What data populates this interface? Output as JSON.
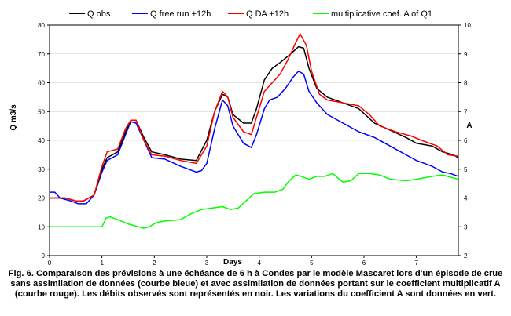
{
  "chart_data": {
    "type": "line",
    "xlabel": "Days",
    "ylabel": "Q m3/s",
    "y2label": "A",
    "xlim": [
      0,
      7.8
    ],
    "ylim": [
      0,
      80
    ],
    "y2lim": [
      2,
      10
    ],
    "x_ticks": [
      "0",
      "1",
      "2",
      "3",
      "4",
      "5",
      "6",
      "7"
    ],
    "y_ticks": [
      "0",
      "10",
      "20",
      "30",
      "40",
      "50",
      "60",
      "70",
      "80"
    ],
    "y2_ticks": [
      "2",
      "3",
      "4",
      "5",
      "6",
      "7",
      "8",
      "9",
      "10"
    ],
    "legend_position": "top",
    "series": [
      {
        "name": "Q obs.",
        "color": "#000000",
        "axis": "left",
        "points": [
          [
            0,
            20
          ],
          [
            0.3,
            20
          ],
          [
            0.5,
            19
          ],
          [
            0.65,
            19
          ],
          [
            0.85,
            21
          ],
          [
            1.0,
            30
          ],
          [
            1.1,
            34
          ],
          [
            1.3,
            36
          ],
          [
            1.45,
            43
          ],
          [
            1.55,
            47
          ],
          [
            1.65,
            47
          ],
          [
            1.8,
            41
          ],
          [
            1.95,
            36
          ],
          [
            2.2,
            35
          ],
          [
            2.5,
            33.5
          ],
          [
            2.8,
            33
          ],
          [
            3.0,
            40
          ],
          [
            3.15,
            50
          ],
          [
            3.3,
            56
          ],
          [
            3.4,
            55
          ],
          [
            3.5,
            49
          ],
          [
            3.7,
            46
          ],
          [
            3.85,
            46
          ],
          [
            3.95,
            51
          ],
          [
            4.1,
            61
          ],
          [
            4.25,
            65
          ],
          [
            4.4,
            67
          ],
          [
            4.6,
            70
          ],
          [
            4.75,
            72.5
          ],
          [
            4.85,
            72
          ],
          [
            4.95,
            65
          ],
          [
            5.1,
            58
          ],
          [
            5.3,
            55
          ],
          [
            5.6,
            53
          ],
          [
            5.9,
            51
          ],
          [
            6.2,
            46
          ],
          [
            6.5,
            43.5
          ],
          [
            6.8,
            41
          ],
          [
            7.0,
            39
          ],
          [
            7.3,
            38
          ],
          [
            7.5,
            36
          ],
          [
            7.7,
            35
          ],
          [
            7.8,
            34
          ]
        ]
      },
      {
        "name": "Q free run +12h",
        "color": "#0000ff",
        "axis": "left",
        "points": [
          [
            0,
            22
          ],
          [
            0.1,
            22
          ],
          [
            0.2,
            20
          ],
          [
            0.4,
            19
          ],
          [
            0.55,
            18
          ],
          [
            0.7,
            18
          ],
          [
            0.85,
            21
          ],
          [
            1.0,
            29
          ],
          [
            1.1,
            33
          ],
          [
            1.3,
            35
          ],
          [
            1.45,
            42
          ],
          [
            1.55,
            46.5
          ],
          [
            1.65,
            46
          ],
          [
            1.8,
            40
          ],
          [
            1.95,
            34
          ],
          [
            2.2,
            33.5
          ],
          [
            2.5,
            31
          ],
          [
            2.8,
            29
          ],
          [
            2.9,
            29.5
          ],
          [
            3.0,
            32
          ],
          [
            3.15,
            44
          ],
          [
            3.3,
            54
          ],
          [
            3.4,
            52
          ],
          [
            3.5,
            45
          ],
          [
            3.7,
            39
          ],
          [
            3.85,
            37.5
          ],
          [
            3.95,
            42
          ],
          [
            4.1,
            51
          ],
          [
            4.2,
            54
          ],
          [
            4.35,
            55
          ],
          [
            4.5,
            58
          ],
          [
            4.65,
            62
          ],
          [
            4.75,
            64
          ],
          [
            4.85,
            63
          ],
          [
            4.95,
            57
          ],
          [
            5.1,
            53
          ],
          [
            5.3,
            49
          ],
          [
            5.6,
            46
          ],
          [
            5.9,
            43
          ],
          [
            6.2,
            41
          ],
          [
            6.5,
            38
          ],
          [
            6.8,
            35
          ],
          [
            7.0,
            33
          ],
          [
            7.3,
            31
          ],
          [
            7.5,
            29
          ],
          [
            7.65,
            28.5
          ],
          [
            7.8,
            27.5
          ]
        ]
      },
      {
        "name": "Q DA +12h",
        "color": "#ff0000",
        "axis": "left",
        "points": [
          [
            0,
            20
          ],
          [
            0.3,
            20
          ],
          [
            0.5,
            19
          ],
          [
            0.65,
            19
          ],
          [
            0.85,
            21
          ],
          [
            1.0,
            31
          ],
          [
            1.1,
            36
          ],
          [
            1.3,
            37
          ],
          [
            1.45,
            44
          ],
          [
            1.55,
            47
          ],
          [
            1.65,
            47
          ],
          [
            1.8,
            40
          ],
          [
            1.95,
            35
          ],
          [
            2.2,
            34.5
          ],
          [
            2.5,
            33
          ],
          [
            2.8,
            32
          ],
          [
            3.0,
            38
          ],
          [
            3.15,
            50
          ],
          [
            3.3,
            57
          ],
          [
            3.4,
            55
          ],
          [
            3.5,
            48
          ],
          [
            3.7,
            43
          ],
          [
            3.85,
            42
          ],
          [
            3.95,
            48
          ],
          [
            4.1,
            57
          ],
          [
            4.25,
            60
          ],
          [
            4.4,
            63
          ],
          [
            4.55,
            68
          ],
          [
            4.7,
            74
          ],
          [
            4.78,
            77
          ],
          [
            4.9,
            73
          ],
          [
            5.0,
            64
          ],
          [
            5.15,
            56
          ],
          [
            5.3,
            54
          ],
          [
            5.6,
            53
          ],
          [
            5.9,
            52
          ],
          [
            6.1,
            49
          ],
          [
            6.3,
            45
          ],
          [
            6.6,
            43
          ],
          [
            6.9,
            41.5
          ],
          [
            7.1,
            40
          ],
          [
            7.4,
            38
          ],
          [
            7.6,
            35
          ],
          [
            7.8,
            34.5
          ]
        ]
      },
      {
        "name": "multiplicative coef. A of Q1",
        "color": "#00ff00",
        "axis": "right",
        "points": [
          [
            0,
            3.0
          ],
          [
            0.5,
            3.0
          ],
          [
            1.0,
            3.0
          ],
          [
            1.08,
            3.3
          ],
          [
            1.15,
            3.35
          ],
          [
            1.3,
            3.25
          ],
          [
            1.5,
            3.1
          ],
          [
            1.7,
            3.0
          ],
          [
            1.8,
            2.95
          ],
          [
            1.9,
            3.0
          ],
          [
            2.05,
            3.15
          ],
          [
            2.2,
            3.2
          ],
          [
            2.5,
            3.25
          ],
          [
            2.7,
            3.45
          ],
          [
            2.9,
            3.6
          ],
          [
            3.1,
            3.65
          ],
          [
            3.3,
            3.7
          ],
          [
            3.45,
            3.6
          ],
          [
            3.6,
            3.65
          ],
          [
            3.75,
            3.9
          ],
          [
            3.9,
            4.15
          ],
          [
            4.1,
            4.2
          ],
          [
            4.3,
            4.2
          ],
          [
            4.45,
            4.3
          ],
          [
            4.55,
            4.55
          ],
          [
            4.7,
            4.8
          ],
          [
            4.8,
            4.75
          ],
          [
            4.95,
            4.65
          ],
          [
            5.1,
            4.75
          ],
          [
            5.25,
            4.75
          ],
          [
            5.4,
            4.85
          ],
          [
            5.6,
            4.55
          ],
          [
            5.75,
            4.6
          ],
          [
            5.9,
            4.85
          ],
          [
            6.1,
            4.85
          ],
          [
            6.3,
            4.8
          ],
          [
            6.5,
            4.65
          ],
          [
            6.8,
            4.6
          ],
          [
            7.0,
            4.65
          ],
          [
            7.3,
            4.75
          ],
          [
            7.5,
            4.8
          ],
          [
            7.8,
            4.65
          ]
        ]
      }
    ]
  },
  "caption": "Fig. 6. Comparaison des prévisions à une échéance de 6 h à Condes par le modèle Mascaret lors d'un épisode de crue sans assimilation de données (courbe bleue) et avec assimilation de données portant sur le coefficient multiplicatif A (courbe rouge). Les débits observés sont représentés en noir. Les variations du coefficient A sont données en vert."
}
